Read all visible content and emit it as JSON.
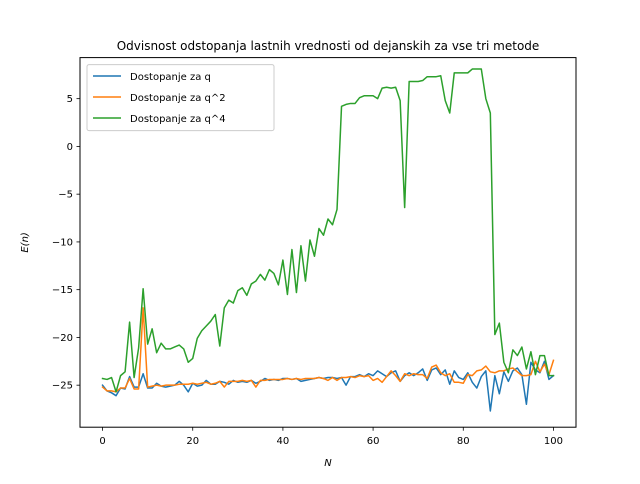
{
  "chart_data": {
    "type": "line",
    "title": "Odvisnost odstopanja lastnih vrednosti od dejanskih za vse tri metode",
    "xlabel": "N",
    "ylabel": "E(n)",
    "xlim": [
      -5,
      105
    ],
    "ylim": [
      -29.4,
      9.3
    ],
    "xticks": [
      0,
      20,
      40,
      60,
      80,
      100
    ],
    "yticks": [
      -25,
      -20,
      -15,
      -10,
      -5,
      0,
      5
    ],
    "grid": false,
    "legend_placement": "top-left",
    "series": [
      {
        "name": "Dostopanje za q",
        "color": "#1f77b4",
        "values": [
          -25.0,
          -25.6,
          -25.8,
          -26.1,
          -25.3,
          -25.4,
          -24.1,
          -25.2,
          -25.2,
          -23.8,
          -25.3,
          -25.3,
          -24.8,
          -25.1,
          -25.2,
          -25.1,
          -25.0,
          -24.6,
          -25.0,
          -25.7,
          -24.8,
          -25.1,
          -25.0,
          -24.5,
          -24.9,
          -24.9,
          -24.6,
          -24.7,
          -24.9,
          -24.5,
          -24.7,
          -24.6,
          -24.7,
          -24.5,
          -24.8,
          -24.6,
          -24.3,
          -24.5,
          -24.4,
          -24.5,
          -24.3,
          -24.3,
          -24.4,
          -24.3,
          -24.6,
          -24.5,
          -24.4,
          -24.3,
          -24.2,
          -24.3,
          -24.2,
          -24.2,
          -24.3,
          -24.2,
          -25.0,
          -24.1,
          -24.1,
          -23.9,
          -24.1,
          -23.8,
          -24.0,
          -23.5,
          -23.8,
          -24.1,
          -23.7,
          -23.5,
          -24.6,
          -24.0,
          -23.7,
          -24.0,
          -23.7,
          -23.3,
          -24.5,
          -23.4,
          -23.2,
          -23.9,
          -23.4,
          -24.9,
          -23.5,
          -24.2,
          -24.4,
          -23.7,
          -24.7,
          -25.3,
          -24.1,
          -23.5,
          -27.7,
          -24.0,
          -25.9,
          -23.6,
          -24.6,
          -23.5,
          -23.2,
          -23.9,
          -27.0,
          -22.6,
          -23.4,
          -23.7,
          -22.5,
          -24.4,
          -24.0
        ]
      },
      {
        "name": "Dostopanje za q^2",
        "color": "#ff7f0e",
        "values": [
          -25.2,
          -25.6,
          -25.6,
          -25.7,
          -25.3,
          -25.3,
          -24.3,
          -25.4,
          -25.4,
          -16.9,
          -25.2,
          -25.1,
          -25.0,
          -25.1,
          -25.0,
          -25.0,
          -25.0,
          -24.9,
          -24.9,
          -24.9,
          -24.8,
          -24.9,
          -24.8,
          -24.7,
          -24.9,
          -24.8,
          -24.6,
          -25.2,
          -24.6,
          -24.6,
          -24.6,
          -24.5,
          -24.6,
          -24.5,
          -25.2,
          -24.5,
          -24.5,
          -24.4,
          -24.4,
          -24.4,
          -24.4,
          -24.3,
          -24.4,
          -24.3,
          -24.4,
          -24.3,
          -24.3,
          -24.3,
          -24.2,
          -24.3,
          -24.5,
          -24.2,
          -24.5,
          -24.2,
          -24.2,
          -24.1,
          -24.2,
          -24.0,
          -24.1,
          -24.0,
          -24.5,
          -24.3,
          -24.7,
          -24.1,
          -23.5,
          -24.0,
          -24.6,
          -23.8,
          -24.0,
          -23.8,
          -23.9,
          -23.9,
          -24.3,
          -23.1,
          -22.9,
          -23.7,
          -24.0,
          -23.8,
          -24.7,
          -24.7,
          -24.8,
          -23.9,
          -24.0,
          -23.5,
          -23.4,
          -23.0,
          -23.6,
          -23.7,
          -23.5,
          -23.5,
          -23.3,
          -23.2,
          -23.6,
          -24.0,
          -24.0,
          -23.9,
          -22.5,
          -23.6,
          -22.8,
          -23.9,
          -22.4
        ]
      },
      {
        "name": "Dostopanje za q^4",
        "color": "#2ca02c",
        "values": [
          -24.3,
          -24.4,
          -24.2,
          -25.7,
          -24.0,
          -23.6,
          -18.4,
          -24.2,
          -21.1,
          -14.9,
          -20.7,
          -19.1,
          -21.6,
          -20.6,
          -21.2,
          -21.2,
          -21.0,
          -20.8,
          -21.2,
          -22.6,
          -22.2,
          -20.1,
          -19.3,
          -18.8,
          -18.3,
          -17.6,
          -20.9,
          -16.9,
          -16.1,
          -16.4,
          -15.1,
          -14.8,
          -15.6,
          -14.4,
          -14.1,
          -13.4,
          -14.0,
          -12.9,
          -13.3,
          -14.5,
          -11.9,
          -15.5,
          -10.8,
          -15.3,
          -10.4,
          -14.1,
          -9.8,
          -11.5,
          -8.6,
          -9.3,
          -7.6,
          -8.2,
          -6.6,
          4.2,
          4.4,
          4.5,
          4.5,
          5.1,
          5.3,
          5.3,
          5.3,
          5.0,
          6.1,
          6.2,
          6.1,
          6.2,
          4.8,
          -6.4,
          6.8,
          6.8,
          6.8,
          6.9,
          7.3,
          7.3,
          7.3,
          7.4,
          4.8,
          3.5,
          7.7,
          7.7,
          7.7,
          7.7,
          8.1,
          8.1,
          8.1,
          5.0,
          3.5,
          -19.7,
          -18.5,
          -22.6,
          -23.7,
          -21.3,
          -21.9,
          -21.0,
          -23.3,
          -21.5,
          -23.9,
          -21.9,
          -21.9,
          -24.0,
          -24.0
        ]
      }
    ]
  }
}
